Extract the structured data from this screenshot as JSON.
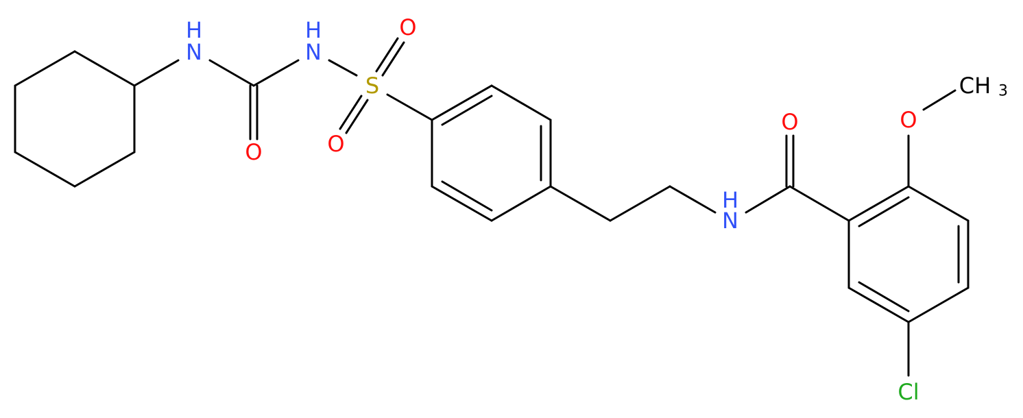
{
  "atoms": [
    {
      "label": "H"
    },
    {
      "label": "N"
    },
    {
      "label": "O"
    },
    {
      "label": "H"
    },
    {
      "label": "N"
    },
    {
      "label": "S"
    },
    {
      "label": "O"
    },
    {
      "label": "O"
    },
    {
      "label": "N"
    },
    {
      "label": "H"
    },
    {
      "label": "O"
    },
    {
      "label": "O"
    },
    {
      "label": "CH"
    },
    {
      "label": "3"
    },
    {
      "label": "Cl"
    }
  ]
}
